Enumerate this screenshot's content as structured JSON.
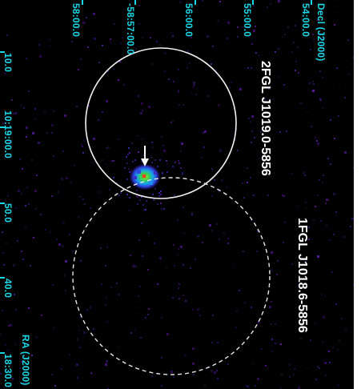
{
  "image": {
    "background_color": "#000000",
    "coord_color": "#19d8e6",
    "label_color": "#ffffff"
  },
  "axes": {
    "dec_title": "Decl (J2000)",
    "dec_ticks": [
      "58:00.0",
      "-58:57:00.0",
      "56:00.0",
      "55:00.0",
      "54:00.0"
    ],
    "ra_title": "RA (J2000)",
    "ra_ticks": [
      "10.0",
      "10:19:00.0",
      "50.0",
      "40.0",
      "18:30.0"
    ]
  },
  "sources": {
    "source_2fgl": "2FGL J1019.0-5856",
    "source_1fgl": "1FGL J1018.6-5856"
  },
  "markers": {
    "arrow_icon": "down-arrow-icon",
    "circle_2fgl_style": "solid",
    "circle_1fgl_style": "dashed"
  }
}
